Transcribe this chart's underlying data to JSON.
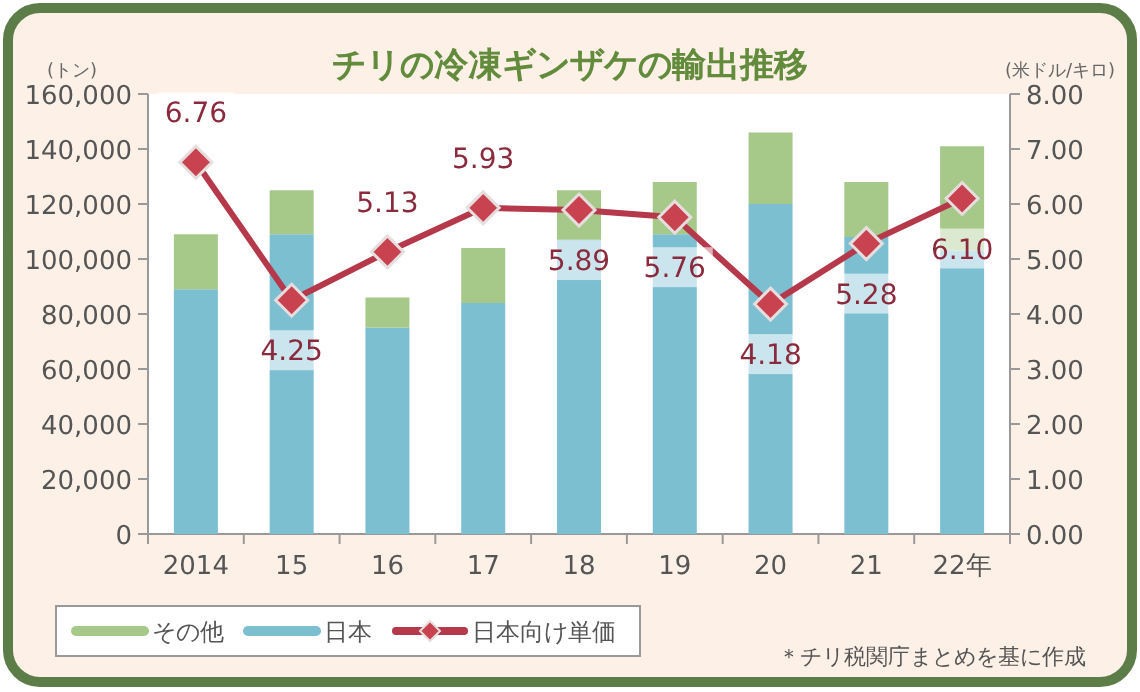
{
  "chart_data": {
    "type": "bar",
    "stacked": true,
    "title": "チリの冷凍ギンザケの輸出推移",
    "ylabel": "(トン)",
    "y2label": "(米ドル/キロ)",
    "categories": [
      "2014",
      "15",
      "16",
      "17",
      "18",
      "19",
      "20",
      "21",
      "22年"
    ],
    "series": [
      {
        "name": "日本",
        "color": "#7bbfd1",
        "values": [
          89000,
          109000,
          75000,
          84000,
          107000,
          109000,
          120000,
          108000,
          103000
        ]
      },
      {
        "name": "その他",
        "color": "#a6c98a",
        "values": [
          20000,
          16000,
          11000,
          20000,
          18000,
          19000,
          26000,
          20000,
          38000
        ]
      },
      {
        "name": "日本向け単価",
        "type": "line",
        "axis": "y2",
        "color": "#b5394b",
        "marker": "diamond",
        "values": [
          6.76,
          4.25,
          5.13,
          5.93,
          5.89,
          5.76,
          4.18,
          5.28,
          6.1
        ],
        "value_labels": [
          "6.76",
          "4.25",
          "5.13",
          "5.93",
          "5.89",
          "5.76",
          "4.18",
          "5.28",
          "6.10"
        ]
      }
    ],
    "ylim": [
      0,
      160000
    ],
    "yticks": [
      0,
      {
        "value": 20000,
        "label": "20,000"
      },
      {
        "value": 40000,
        "label": "40,000"
      },
      {
        "value": 60000,
        "label": "60,000"
      },
      {
        "value": 80000,
        "label": "80,000"
      },
      {
        "value": 100000,
        "label": "100,000"
      },
      {
        "value": 120000,
        "label": "120,000"
      },
      {
        "value": 140000,
        "label": "140,000"
      },
      {
        "value": 160000,
        "label": "160,000"
      }
    ],
    "y2lim": [
      0,
      8
    ],
    "y2ticks": [
      {
        "value": 0,
        "label": "0.00"
      },
      {
        "value": 1,
        "label": "1.00"
      },
      {
        "value": 2,
        "label": "2.00"
      },
      {
        "value": 3,
        "label": "3.00"
      },
      {
        "value": 4,
        "label": "4.00"
      },
      {
        "value": 5,
        "label": "5.00"
      },
      {
        "value": 6,
        "label": "6.00"
      },
      {
        "value": 7,
        "label": "7.00"
      },
      {
        "value": 8,
        "label": "8.00"
      }
    ],
    "grid": false,
    "legend": "bottom left",
    "annotations": [
      "＊チリ税関庁まとめを基に作成"
    ]
  }
}
